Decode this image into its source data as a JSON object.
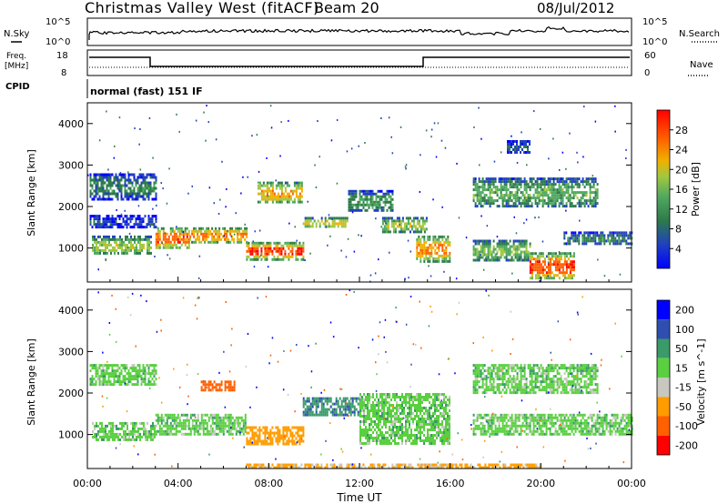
{
  "header": {
    "station": "Christmas Valley West (fitACF)",
    "beam": "Beam 20",
    "date": "08/Jul/2012"
  },
  "top_panels": {
    "nsky_label": "N.Sky",
    "nsearch_label": "N.Search",
    "freq_label_1": "Freq.",
    "freq_label_2": "[MHz]",
    "nave_label": "Nave",
    "cpid_label": "CPID",
    "cpid_text": "normal (fast) 151 IF",
    "noise_ticks_left": [
      "10^5",
      "10^0"
    ],
    "noise_ticks_right": [
      "10^5",
      "10^0"
    ],
    "freq_ticks": [
      "18",
      "8"
    ],
    "nave_ticks": [
      "60",
      "0"
    ]
  },
  "chart_data": [
    {
      "type": "heatmap",
      "name": "power",
      "xlabel": "",
      "ylabel": "Slant Range [km]",
      "xlim": [
        0,
        24
      ],
      "ylim": [
        180,
        4500
      ],
      "yticks": [
        1000,
        2000,
        3000,
        4000
      ],
      "colorbar": {
        "label": "Power [dB]",
        "ticks": [
          4,
          8,
          12,
          16,
          20,
          24,
          28
        ],
        "range": [
          0,
          32
        ],
        "colors": [
          "#0000ff",
          "#2040c0",
          "#2e7a4a",
          "#4fa860",
          "#a0c840",
          "#f0b000",
          "#ff6000",
          "#ff0000"
        ]
      },
      "regions": [
        {
          "t": [
            0.1,
            3.0
          ],
          "r": [
            2200,
            2800
          ],
          "level": 10
        },
        {
          "t": [
            0.1,
            3.0
          ],
          "r": [
            1500,
            1800
          ],
          "level": 6
        },
        {
          "t": [
            0.2,
            2.8
          ],
          "r": [
            850,
            1300
          ],
          "level": 18
        },
        {
          "t": [
            3.0,
            4.5
          ],
          "r": [
            1000,
            1500
          ],
          "level": 26
        },
        {
          "t": [
            4.5,
            7.0
          ],
          "r": [
            1150,
            1500
          ],
          "level": 25
        },
        {
          "t": [
            7.0,
            9.5
          ],
          "r": [
            750,
            1150
          ],
          "level": 27
        },
        {
          "t": [
            7.5,
            9.5
          ],
          "r": [
            2100,
            2600
          ],
          "level": 22
        },
        {
          "t": [
            9.5,
            11.5
          ],
          "r": [
            1500,
            1750
          ],
          "level": 20
        },
        {
          "t": [
            11.5,
            13.5
          ],
          "r": [
            1900,
            2400
          ],
          "level": 12
        },
        {
          "t": [
            13.0,
            15.0
          ],
          "r": [
            1400,
            1750
          ],
          "level": 18
        },
        {
          "t": [
            14.5,
            16.0
          ],
          "r": [
            700,
            1300
          ],
          "level": 24
        },
        {
          "t": [
            17.0,
            19.5
          ],
          "r": [
            700,
            1200
          ],
          "level": 16
        },
        {
          "t": [
            19.5,
            21.5
          ],
          "r": [
            250,
            900
          ],
          "level": 27
        },
        {
          "t": [
            17.0,
            22.5
          ],
          "r": [
            2000,
            2700
          ],
          "level": 14
        },
        {
          "t": [
            21.0,
            24.0
          ],
          "r": [
            1100,
            1400
          ],
          "level": 10
        },
        {
          "t": [
            18.5,
            19.5
          ],
          "r": [
            3300,
            3600
          ],
          "level": 8
        }
      ]
    },
    {
      "type": "heatmap",
      "name": "velocity",
      "xlabel": "Time UT",
      "ylabel": "Slant Range [km]",
      "xlim": [
        0,
        24
      ],
      "ylim": [
        180,
        4500
      ],
      "xticks": [
        "00:00",
        "04:00",
        "08:00",
        "12:00",
        "16:00",
        "20:00",
        "00:00"
      ],
      "yticks": [
        1000,
        2000,
        3000,
        4000
      ],
      "colorbar": {
        "label": "Velocity [m s^-1]",
        "ticks": [
          200,
          100,
          50,
          15,
          -15,
          -50,
          -100,
          -200
        ],
        "colors": [
          "#0000ff",
          "#2f4fb0",
          "#3a9a6a",
          "#5ad040",
          "#c8c8c0",
          "#ff9c00",
          "#ff6000",
          "#ff0000"
        ]
      },
      "regions": [
        {
          "t": [
            0.1,
            3.0
          ],
          "r": [
            2200,
            2700
          ],
          "vel": 0
        },
        {
          "t": [
            0.2,
            3.0
          ],
          "r": [
            850,
            1300
          ],
          "vel": 0
        },
        {
          "t": [
            3.0,
            7.0
          ],
          "r": [
            1000,
            1500
          ],
          "vel": 0
        },
        {
          "t": [
            7.0,
            9.5
          ],
          "r": [
            800,
            1200
          ],
          "vel": -70
        },
        {
          "t": [
            9.5,
            12.0
          ],
          "r": [
            1500,
            1900
          ],
          "vel": 40
        },
        {
          "t": [
            5.0,
            6.5
          ],
          "r": [
            2100,
            2300
          ],
          "vel": -120
        },
        {
          "t": [
            12.0,
            16.0
          ],
          "r": [
            800,
            2000
          ],
          "vel": 0
        },
        {
          "t": [
            17.0,
            24.0
          ],
          "r": [
            1000,
            1500
          ],
          "vel": 0
        },
        {
          "t": [
            17.0,
            22.5
          ],
          "r": [
            2000,
            2700
          ],
          "vel": 0
        },
        {
          "t": [
            7.0,
            20.0
          ],
          "r": [
            180,
            300
          ],
          "vel": -60
        }
      ]
    }
  ]
}
